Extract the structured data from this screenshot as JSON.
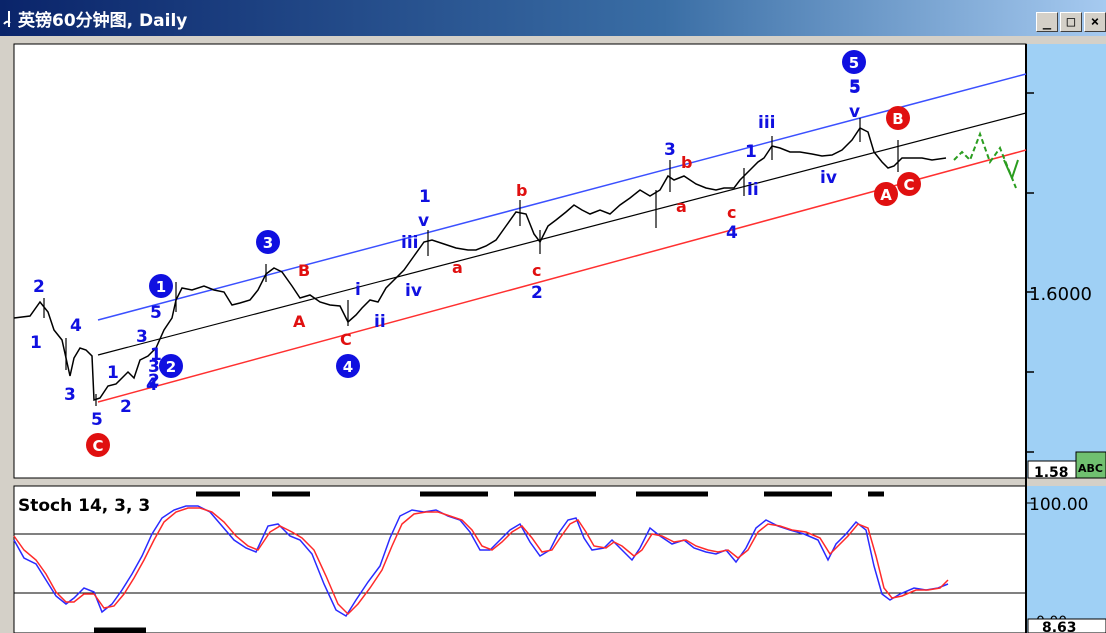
{
  "window": {
    "title": "英镑60分钟图, Daily",
    "buttons": [
      "_",
      "□",
      "×"
    ]
  },
  "price_panel": {
    "axis_label": "1.6000",
    "axis_label_bottom": "1.58",
    "bottom_tag": "ABC"
  },
  "stoch_panel": {
    "title": "Stoch 14, 3, 3",
    "axis_top": "100.00",
    "axis_bottom": "0.00",
    "value_tag": "8.63"
  },
  "colors": {
    "wave_blue": "#1010e0",
    "wave_red": "#e01010",
    "channel_blue": "#3b50ff",
    "channel_black": "#000000",
    "channel_red": "#ff3030",
    "forecast": "#2a9d1f",
    "stoch_k": "#2a2aff",
    "stoch_d": "#ff2a2a",
    "chart_bg": "#ffffff",
    "axis_bg": "#9fd0f5"
  },
  "chart_data": {
    "type": "line",
    "price_labels": {
      "blue": [
        "2",
        "1",
        "4",
        "3",
        "5",
        "1",
        "3",
        "2",
        "5",
        "1",
        "2",
        "3",
        "4",
        "i",
        "ii",
        "iv",
        "iii",
        "1",
        "v",
        "3",
        "iii",
        "5",
        "v",
        "iv",
        "ii",
        "1",
        "2",
        "4",
        "5"
      ],
      "red": [
        "B",
        "A",
        "C",
        "a",
        "b",
        "c",
        "b",
        "a",
        "c",
        "B",
        "A",
        "C"
      ],
      "circled_blue": [
        "1",
        "2",
        "3",
        "4",
        "5"
      ],
      "circled_red": [
        "C",
        "B",
        "A",
        "C"
      ]
    }
  }
}
